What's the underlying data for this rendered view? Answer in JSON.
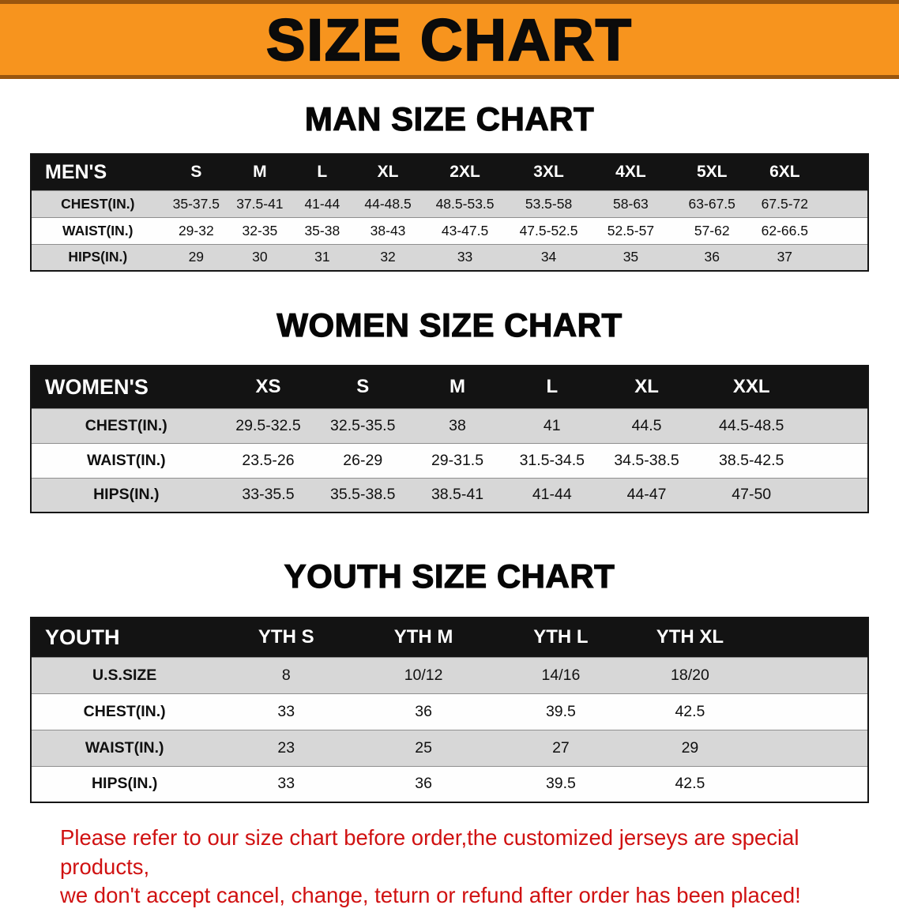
{
  "banner": {
    "title": "SIZE CHART"
  },
  "colors": {
    "banner_orange": "#f7941e",
    "header_black": "#131313",
    "row_gray": "#d7d7d7",
    "disclaimer_red": "#d01111"
  },
  "chart_data": [
    {
      "type": "table",
      "heading": "MAN SIZE CHART",
      "header": [
        "MEN'S",
        "S",
        "M",
        "L",
        "XL",
        "2XL",
        "3XL",
        "4XL",
        "5XL",
        "6XL"
      ],
      "rows": [
        {
          "label": "CHEST(IN.)",
          "values": [
            "35-37.5",
            "37.5-41",
            "41-44",
            "44-48.5",
            "48.5-53.5",
            "53.5-58",
            "58-63",
            "63-67.5",
            "67.5-72"
          ]
        },
        {
          "label": "WAIST(IN.)",
          "values": [
            "29-32",
            "32-35",
            "35-38",
            "38-43",
            "43-47.5",
            "47.5-52.5",
            "52.5-57",
            "57-62",
            "62-66.5"
          ]
        },
        {
          "label": "HIPS(IN.)",
          "values": [
            "29",
            "30",
            "31",
            "32",
            "33",
            "34",
            "35",
            "36",
            "37"
          ]
        }
      ]
    },
    {
      "type": "table",
      "heading": "WOMEN SIZE CHART",
      "header": [
        "WOMEN'S",
        "XS",
        "S",
        "M",
        "L",
        "XL",
        "XXL"
      ],
      "rows": [
        {
          "label": "CHEST(IN.)",
          "values": [
            "29.5-32.5",
            "32.5-35.5",
            "38",
            "41",
            "44.5",
            "44.5-48.5"
          ]
        },
        {
          "label": "WAIST(IN.)",
          "values": [
            "23.5-26",
            "26-29",
            "29-31.5",
            "31.5-34.5",
            "34.5-38.5",
            "38.5-42.5"
          ]
        },
        {
          "label": "HIPS(IN.)",
          "values": [
            "33-35.5",
            "35.5-38.5",
            "38.5-41",
            "41-44",
            "44-47",
            "47-50"
          ]
        }
      ]
    },
    {
      "type": "table",
      "heading": "YOUTH SIZE CHART",
      "header": [
        "YOUTH",
        "YTH S",
        "YTH M",
        "YTH L",
        "YTH XL"
      ],
      "rows": [
        {
          "label": "U.S.SIZE",
          "values": [
            "8",
            "10/12",
            "14/16",
            "18/20"
          ]
        },
        {
          "label": "CHEST(IN.)",
          "values": [
            "33",
            "36",
            "39.5",
            "42.5"
          ]
        },
        {
          "label": "WAIST(IN.)",
          "values": [
            "23",
            "25",
            "27",
            "29"
          ]
        },
        {
          "label": "HIPS(IN.)",
          "values": [
            "33",
            "36",
            "39.5",
            "42.5"
          ]
        }
      ]
    }
  ],
  "disclaimer": {
    "lines": [
      "Please refer to our size chart before order,the customized jerseys are special products,",
      "we don't accept cancel, change, teturn or refund after order has been placed!"
    ]
  }
}
